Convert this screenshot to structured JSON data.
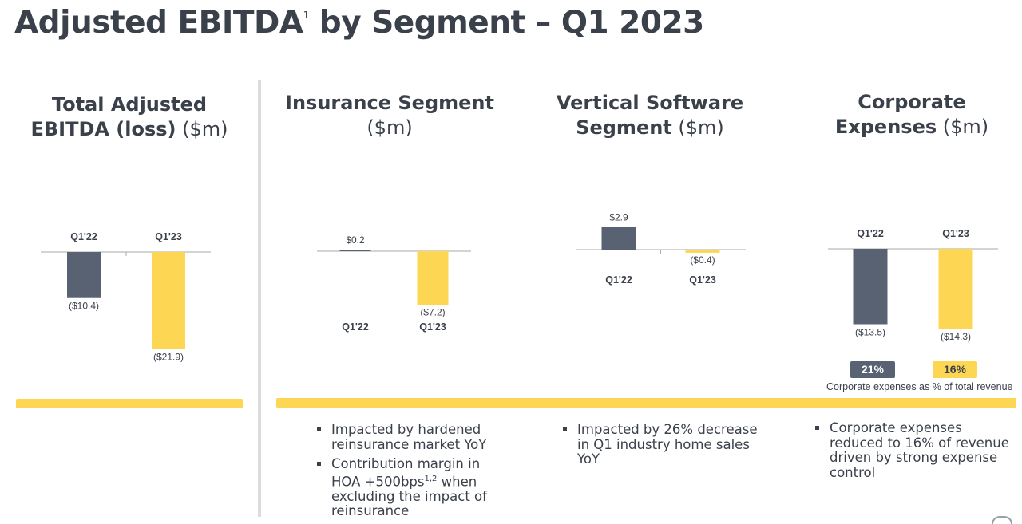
{
  "title": {
    "text": "Adjusted EBITDA",
    "footnote": "1",
    "rest": " by Segment – Q1 2023"
  },
  "panels": {
    "total": {
      "title_bold_1": "Total Adjusted",
      "title_bold_2": "EBITDA (loss)",
      "unit": " ($m)"
    },
    "insurance": {
      "title_bold": "Insurance Segment",
      "unit": "($m)"
    },
    "software": {
      "title_bold_1": "Vertical Software",
      "title_bold_2": "Segment",
      "unit": " ($m)"
    },
    "corporate": {
      "title_bold_1": "Corporate",
      "title_bold_2": "Expenses",
      "unit": " ($m)"
    }
  },
  "colors": {
    "q122": "#596273",
    "q123": "#fdd653",
    "text": "#3b414b",
    "band": "#fdd653"
  },
  "chart_data": [
    {
      "type": "bar",
      "categories": [
        "Q1'22",
        "Q1'23"
      ],
      "values": [
        -10.4,
        -21.9
      ],
      "labels": [
        "($10.4)",
        "($21.9)"
      ],
      "title": "Total Adjusted EBITDA (loss) ($m)"
    },
    {
      "type": "bar",
      "categories": [
        "Q1'22",
        "Q1'23"
      ],
      "values": [
        0.2,
        -7.2
      ],
      "labels": [
        "$0.2",
        "($7.2)"
      ],
      "title": "Insurance Segment ($m)"
    },
    {
      "type": "bar",
      "categories": [
        "Q1'22",
        "Q1'23"
      ],
      "values": [
        2.9,
        -0.4
      ],
      "labels": [
        "$2.9",
        "($0.4)"
      ],
      "title": "Vertical Software Segment ($m)"
    },
    {
      "type": "bar",
      "categories": [
        "Q1'22",
        "Q1'23"
      ],
      "values": [
        -13.5,
        -14.3
      ],
      "labels": [
        "($13.5)",
        "($14.3)"
      ],
      "title": "Corporate Expenses ($m)",
      "percent_of_revenue": [
        "21%",
        "16%"
      ],
      "percent_caption": "Corporate expenses as % of total revenue"
    }
  ],
  "bullets": {
    "insurance": [
      {
        "text": "Impacted by hardened reinsurance market YoY"
      },
      {
        "text_before": "Contribution margin in HOA +500bps",
        "sup": "1,2",
        "text_after": " when excluding the impact of reinsurance"
      }
    ],
    "software": [
      {
        "text": "Impacted by 26% decrease in Q1 industry home sales YoY"
      }
    ],
    "corporate": [
      {
        "text": "Corporate expenses reduced to 16% of revenue driven by strong expense control"
      }
    ]
  }
}
